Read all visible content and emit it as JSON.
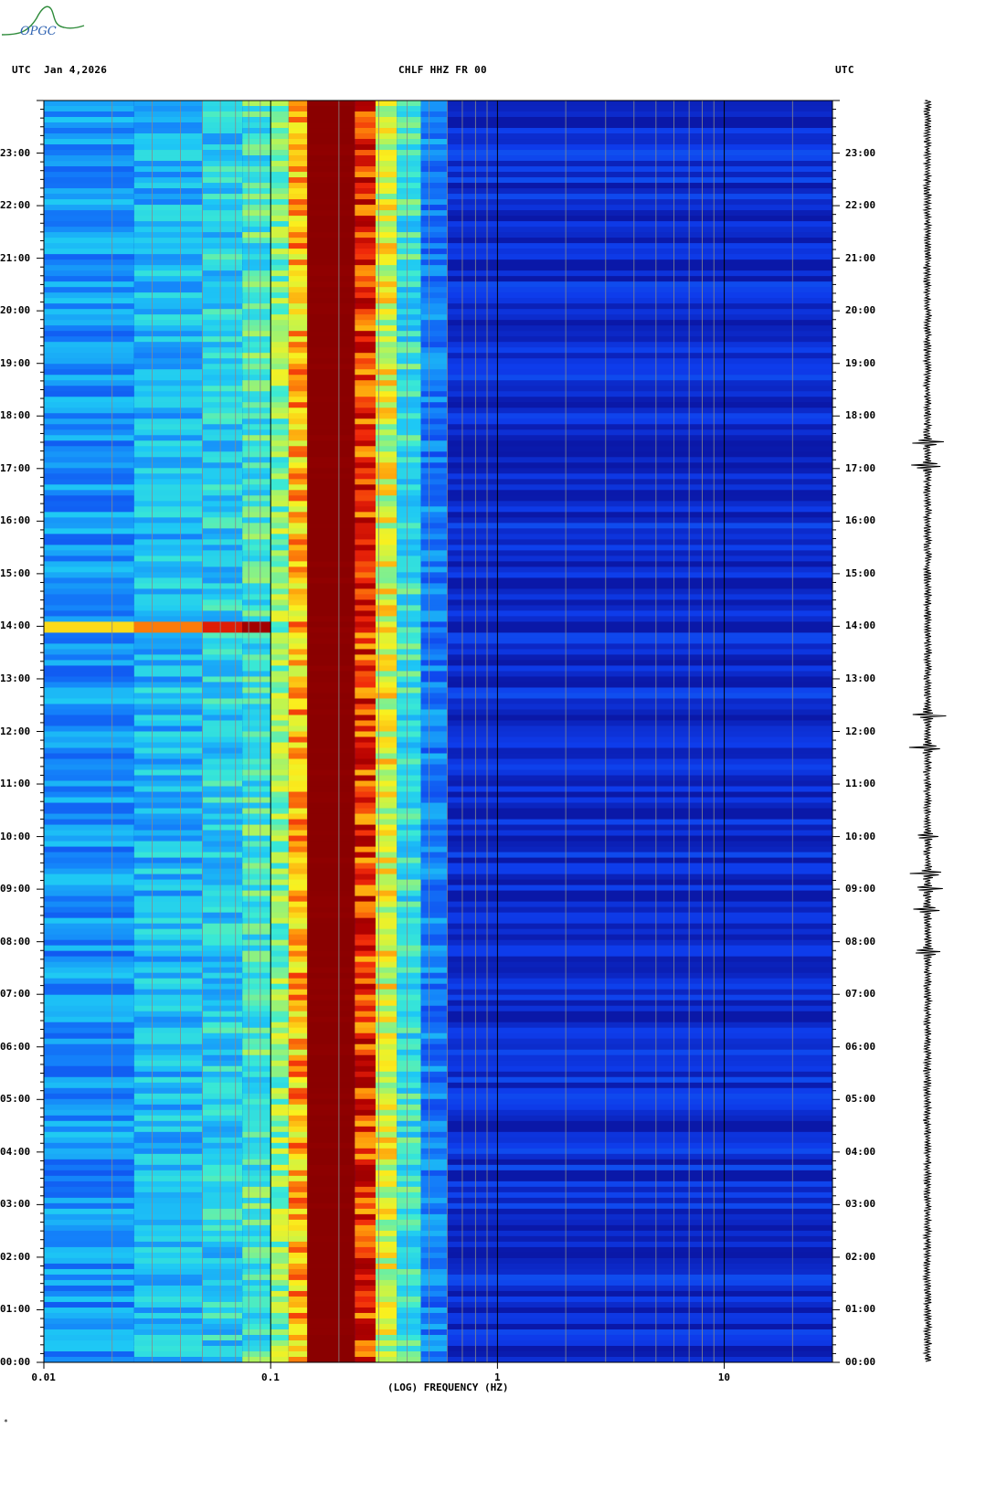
{
  "header": {
    "left_tz": "UTC",
    "date": "Jan 4,2026",
    "station": "CHLF HHZ FR 00",
    "right_tz": "UTC"
  },
  "logo_text": "OPGC",
  "footer_mark": "*",
  "colors": {
    "background_blue": "#0a18a8",
    "dark_red": "#8a0000",
    "grid": "#8a8a8a"
  },
  "chart_data": {
    "type": "heatmap",
    "title": "CHLF HHZ FR 00",
    "xlabel": "(LOG) FREQUENCY (HZ)",
    "ylabel": "UTC",
    "x_scale": "log",
    "xlim": [
      0.01,
      30
    ],
    "ylim_hours": [
      0,
      24
    ],
    "x_tick_values": [
      0.01,
      0.1,
      1,
      10
    ],
    "x_tick_labels": [
      "0.01",
      "0.1",
      "1",
      "10"
    ],
    "y_tick_values": [
      0,
      1,
      2,
      3,
      4,
      5,
      6,
      7,
      8,
      9,
      10,
      11,
      12,
      13,
      14,
      15,
      16,
      17,
      18,
      19,
      20,
      21,
      22,
      23
    ],
    "y_tick_labels": [
      "00:00",
      "01:00",
      "02:00",
      "03:00",
      "04:00",
      "05:00",
      "06:00",
      "07:00",
      "08:00",
      "09:00",
      "10:00",
      "11:00",
      "12:00",
      "13:00",
      "14:00",
      "15:00",
      "16:00",
      "17:00",
      "18:00",
      "19:00",
      "20:00",
      "21:00",
      "22:00",
      "23:00"
    ],
    "grid": true,
    "frequency_bands": [
      {
        "f_min": 0.01,
        "f_max": 0.025,
        "level": 0.32
      },
      {
        "f_min": 0.025,
        "f_max": 0.05,
        "level": 0.4
      },
      {
        "f_min": 0.05,
        "f_max": 0.075,
        "level": 0.44
      },
      {
        "f_min": 0.075,
        "f_max": 0.1,
        "level": 0.5
      },
      {
        "f_min": 0.1,
        "f_max": 0.12,
        "level": 0.58
      },
      {
        "f_min": 0.12,
        "f_max": 0.145,
        "level": 0.74
      },
      {
        "f_min": 0.145,
        "f_max": 0.235,
        "level": 1.0
      },
      {
        "f_min": 0.235,
        "f_max": 0.29,
        "level": 0.86
      },
      {
        "f_min": 0.29,
        "f_max": 0.36,
        "level": 0.66
      },
      {
        "f_min": 0.36,
        "f_max": 0.46,
        "level": 0.48
      },
      {
        "f_min": 0.46,
        "f_max": 0.6,
        "level": 0.28
      },
      {
        "f_min": 0.6,
        "f_max": 30,
        "level": 0.08
      }
    ],
    "events_utc_hours": [
      7.8,
      8.6,
      9.0,
      9.3,
      10.0,
      11.7,
      12.3,
      17.05,
      17.5
    ],
    "notable_low_freq_feature": {
      "hour": 14.0,
      "f_min": 0.01,
      "f_max": 0.1
    }
  }
}
